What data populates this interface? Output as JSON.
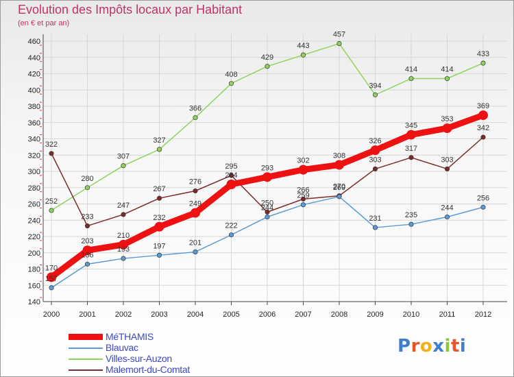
{
  "title": "Evolution des Impôts locaux par Habitant",
  "subtitle": "(en € et par an)",
  "logo": {
    "text": "Proxiti",
    "letter_colors": [
      "#3f7fcf",
      "#e9552a",
      "#f2b01e",
      "#3f7fcf",
      "#8dc63f",
      "#e9552a",
      "#3f7fcf"
    ]
  },
  "chart_data": {
    "type": "line",
    "x": [
      2000,
      2001,
      2002,
      2003,
      2004,
      2005,
      2006,
      2007,
      2008,
      2009,
      2010,
      2011,
      2012
    ],
    "x_tick_labels": [
      "2000",
      "2001",
      "2002",
      "2003",
      "2004",
      "2005",
      "2006",
      "2007",
      "2008",
      "2009",
      "2010",
      "2011",
      "2012"
    ],
    "ylim": [
      140,
      460
    ],
    "y_ticks": [
      140,
      160,
      180,
      200,
      220,
      240,
      260,
      280,
      300,
      320,
      340,
      360,
      380,
      400,
      420,
      440,
      460
    ],
    "grid": true,
    "legend_position": "bottom-left",
    "series": [
      {
        "name": "MéTHAMIS",
        "color": "#ee1111",
        "emphasis": true,
        "values": [
          170,
          203,
          210,
          232,
          249,
          284,
          293,
          302,
          308,
          326,
          345,
          353,
          369
        ],
        "labels": [
          "170",
          "203",
          "210",
          "232",
          "249",
          "284",
          "293",
          "302",
          "308",
          "326",
          "345",
          "353",
          "369"
        ]
      },
      {
        "name": "Blauvac",
        "color": "#5b9bd5",
        "values": [
          157,
          186,
          193,
          197,
          201,
          222,
          244,
          259,
          269,
          231,
          235,
          244,
          256
        ],
        "labels": [
          "157",
          "186",
          "193",
          "197",
          "201",
          "222",
          "244",
          "259",
          "269",
          "231",
          "235",
          "244",
          "256"
        ]
      },
      {
        "name": "Villes-sur-Auzon",
        "color": "#8fd35f",
        "values": [
          252,
          280,
          307,
          327,
          366,
          408,
          429,
          443,
          457,
          394,
          414,
          414,
          433
        ],
        "labels": [
          "252",
          "280",
          "307",
          "327",
          "366",
          "408",
          "429",
          "443",
          "457",
          "394",
          "414",
          "414",
          "433"
        ]
      },
      {
        "name": "Malemort-du-Comtat",
        "color": "#7a2b2b",
        "values": [
          322,
          233,
          247,
          267,
          276,
          295,
          250,
          266,
          270,
          303,
          317,
          303,
          342
        ],
        "labels": [
          "322",
          "233",
          "247",
          "267",
          "276",
          "295",
          "250",
          "266",
          "270",
          "303",
          "317",
          "303",
          "342"
        ]
      }
    ]
  }
}
